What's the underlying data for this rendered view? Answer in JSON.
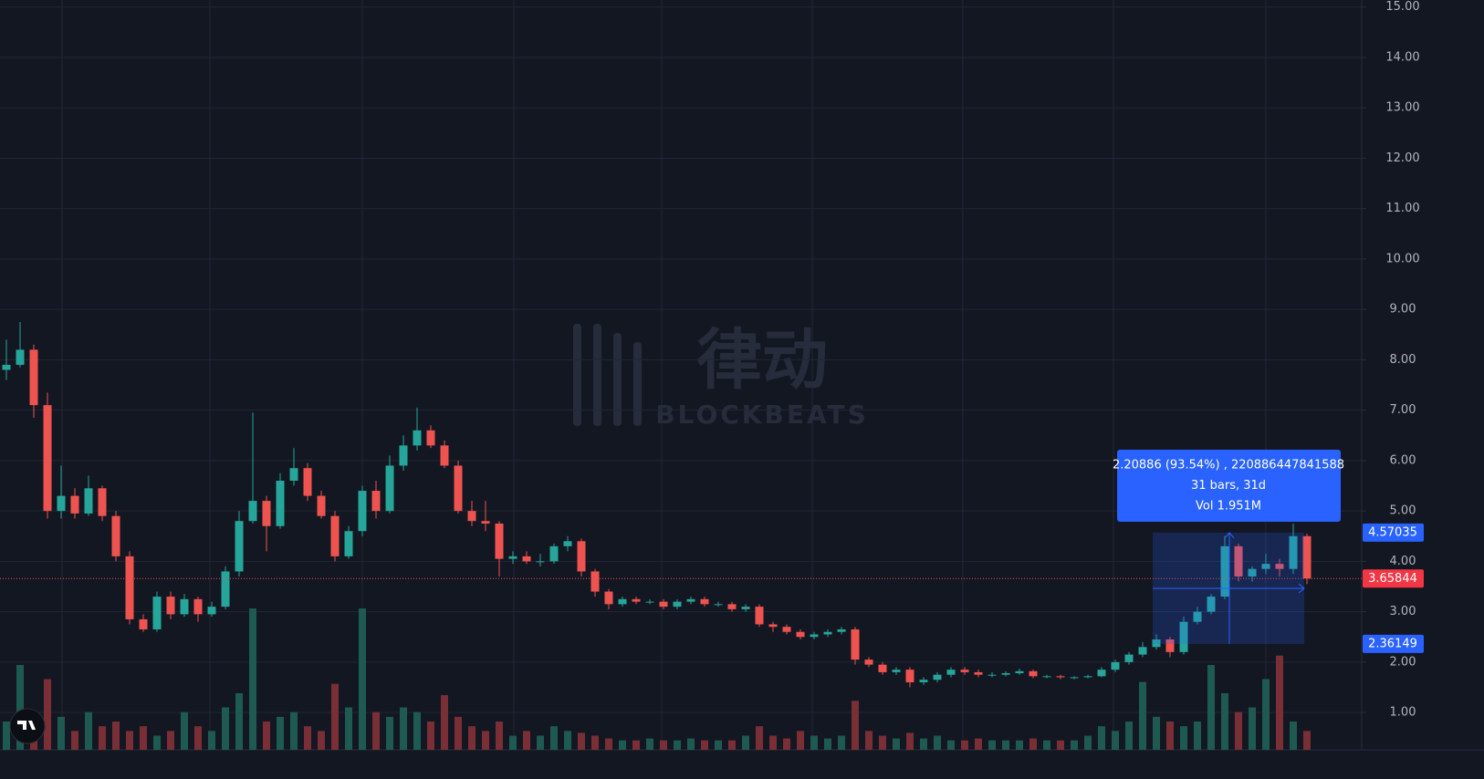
{
  "chart_data": {
    "type": "candlestick",
    "open": [
      7.8,
      7.9,
      8.2,
      7.1,
      5.0,
      5.3,
      4.95,
      5.45,
      4.9,
      4.1,
      2.85,
      2.65,
      3.3,
      2.95,
      3.25,
      2.95,
      3.1,
      3.8,
      4.8,
      5.2,
      4.7,
      5.6,
      5.85,
      5.3,
      4.9,
      4.1,
      4.6,
      5.4,
      5.0,
      5.9,
      6.3,
      6.6,
      6.3,
      5.9,
      5.0,
      4.8,
      4.75,
      4.05,
      4.1,
      4.0,
      4.0,
      4.3,
      4.4,
      3.8,
      3.4,
      3.15,
      3.25,
      3.2,
      3.2,
      3.1,
      3.2,
      3.25,
      3.15,
      3.15,
      3.05,
      3.1,
      2.75,
      2.7,
      2.6,
      2.5,
      2.55,
      2.6,
      2.65,
      2.05,
      1.95,
      1.8,
      1.85,
      1.6,
      1.65,
      1.75,
      1.85,
      1.8,
      1.75,
      1.75,
      1.78,
      1.82,
      1.72,
      1.72,
      1.7,
      1.7,
      1.72,
      1.85,
      2.0,
      2.15,
      2.3,
      2.45,
      2.2,
      2.8,
      3.0,
      3.3,
      4.3,
      3.7,
      3.85,
      3.95,
      3.85,
      4.5
    ],
    "high": [
      8.4,
      8.75,
      8.3,
      7.35,
      5.9,
      5.45,
      5.7,
      5.5,
      5.0,
      4.2,
      2.95,
      3.4,
      3.4,
      3.35,
      3.3,
      3.2,
      3.9,
      5.0,
      6.95,
      5.3,
      5.75,
      6.25,
      5.95,
      5.4,
      5.0,
      4.7,
      5.5,
      5.6,
      6.1,
      6.5,
      7.05,
      6.7,
      6.4,
      6.0,
      5.2,
      5.2,
      4.8,
      4.2,
      4.2,
      4.15,
      4.35,
      4.5,
      4.45,
      3.85,
      3.45,
      3.3,
      3.3,
      3.25,
      3.25,
      3.25,
      3.3,
      3.3,
      3.2,
      3.2,
      3.15,
      3.15,
      2.8,
      2.75,
      2.65,
      2.6,
      2.65,
      2.7,
      2.7,
      2.1,
      2.0,
      1.9,
      1.9,
      1.7,
      1.8,
      1.9,
      1.9,
      1.85,
      1.8,
      1.82,
      1.87,
      1.85,
      1.75,
      1.75,
      1.72,
      1.75,
      1.9,
      2.05,
      2.2,
      2.4,
      2.55,
      2.5,
      2.9,
      3.1,
      3.35,
      4.5,
      4.35,
      3.9,
      4.15,
      4.05,
      4.75,
      4.55
    ],
    "low": [
      7.6,
      7.85,
      6.85,
      4.85,
      4.85,
      4.85,
      4.9,
      4.8,
      4.0,
      2.75,
      2.6,
      2.6,
      2.85,
      2.9,
      2.8,
      2.9,
      3.05,
      3.7,
      4.75,
      4.2,
      4.65,
      5.5,
      5.2,
      4.85,
      4.0,
      4.05,
      4.5,
      4.85,
      4.95,
      5.8,
      6.2,
      6.25,
      5.85,
      4.95,
      4.7,
      4.6,
      3.7,
      3.95,
      3.95,
      3.9,
      3.95,
      4.2,
      3.7,
      3.3,
      3.05,
      3.1,
      3.15,
      3.15,
      3.05,
      3.05,
      3.15,
      3.1,
      3.1,
      3.0,
      3.0,
      2.7,
      2.6,
      2.55,
      2.45,
      2.45,
      2.5,
      2.55,
      1.95,
      1.9,
      1.75,
      1.75,
      1.5,
      1.55,
      1.6,
      1.7,
      1.75,
      1.7,
      1.7,
      1.72,
      1.75,
      1.68,
      1.68,
      1.66,
      1.66,
      1.68,
      1.7,
      1.8,
      1.95,
      2.1,
      2.25,
      2.1,
      2.15,
      2.75,
      2.95,
      3.25,
      3.6,
      3.6,
      3.75,
      3.7,
      3.75,
      3.55
    ],
    "close": [
      7.9,
      8.2,
      7.1,
      5.0,
      5.3,
      4.95,
      5.45,
      4.9,
      4.1,
      2.85,
      2.65,
      3.3,
      2.95,
      3.25,
      2.95,
      3.1,
      3.8,
      4.8,
      5.2,
      4.7,
      5.6,
      5.85,
      5.3,
      4.9,
      4.1,
      4.6,
      5.4,
      5.0,
      5.9,
      6.3,
      6.6,
      6.3,
      5.9,
      5.0,
      4.8,
      4.75,
      4.05,
      4.1,
      4.0,
      4.0,
      4.3,
      4.4,
      3.8,
      3.4,
      3.15,
      3.25,
      3.2,
      3.2,
      3.1,
      3.2,
      3.25,
      3.15,
      3.15,
      3.05,
      3.1,
      2.75,
      2.7,
      2.6,
      2.5,
      2.55,
      2.6,
      2.65,
      2.05,
      1.95,
      1.8,
      1.85,
      1.6,
      1.65,
      1.75,
      1.85,
      1.8,
      1.75,
      1.75,
      1.78,
      1.82,
      1.72,
      1.72,
      1.7,
      1.7,
      1.72,
      1.85,
      2.0,
      2.15,
      2.3,
      2.45,
      2.2,
      2.8,
      3.0,
      3.3,
      4.3,
      3.7,
      3.85,
      3.95,
      3.85,
      4.5,
      3.66
    ],
    "volume": [
      30,
      90,
      25,
      75,
      35,
      20,
      40,
      25,
      30,
      20,
      25,
      15,
      20,
      40,
      25,
      20,
      45,
      60,
      150,
      30,
      35,
      40,
      25,
      20,
      70,
      45,
      150,
      40,
      35,
      45,
      40,
      30,
      58,
      35,
      25,
      20,
      30,
      15,
      20,
      15,
      25,
      20,
      18,
      15,
      12,
      10,
      10,
      12,
      10,
      10,
      12,
      10,
      10,
      10,
      15,
      25,
      15,
      12,
      20,
      15,
      12,
      15,
      52,
      20,
      15,
      12,
      18,
      12,
      15,
      10,
      10,
      12,
      10,
      10,
      10,
      12,
      10,
      10,
      10,
      15,
      25,
      20,
      30,
      72,
      35,
      30,
      25,
      30,
      90,
      60,
      40,
      45,
      75,
      100,
      30,
      20
    ],
    "up_color": "#26a69a",
    "down_color": "#ef5350",
    "ylim": [
      0.26,
      15.14
    ],
    "yticks": [
      {
        "value": 1,
        "label": "1.00"
      },
      {
        "value": 2,
        "label": "2.00"
      },
      {
        "value": 3,
        "label": "3.00"
      },
      {
        "value": 4,
        "label": "4.00"
      },
      {
        "value": 5,
        "label": "5.00"
      },
      {
        "value": 6,
        "label": "6.00"
      },
      {
        "value": 7,
        "label": "7.00"
      },
      {
        "value": 8,
        "label": "8.00"
      },
      {
        "value": 9,
        "label": "9.00"
      },
      {
        "value": 10,
        "label": "10.00"
      },
      {
        "value": 11,
        "label": "11.00"
      },
      {
        "value": 12,
        "label": "12.00"
      },
      {
        "value": 13,
        "label": "13.00"
      },
      {
        "value": 14,
        "label": "14.00"
      },
      {
        "value": 15,
        "label": "15.00"
      }
    ],
    "grid": true,
    "last_price": 3.65844,
    "measure": {
      "high": 4.57035,
      "low": 2.36149,
      "lines": [
        "2.20886 (93.54%) , 220886447841588",
        "31 bars, 31d",
        "Vol 1.951M"
      ]
    },
    "watermark": [
      "律动",
      "BLOCKBEATS"
    ]
  }
}
